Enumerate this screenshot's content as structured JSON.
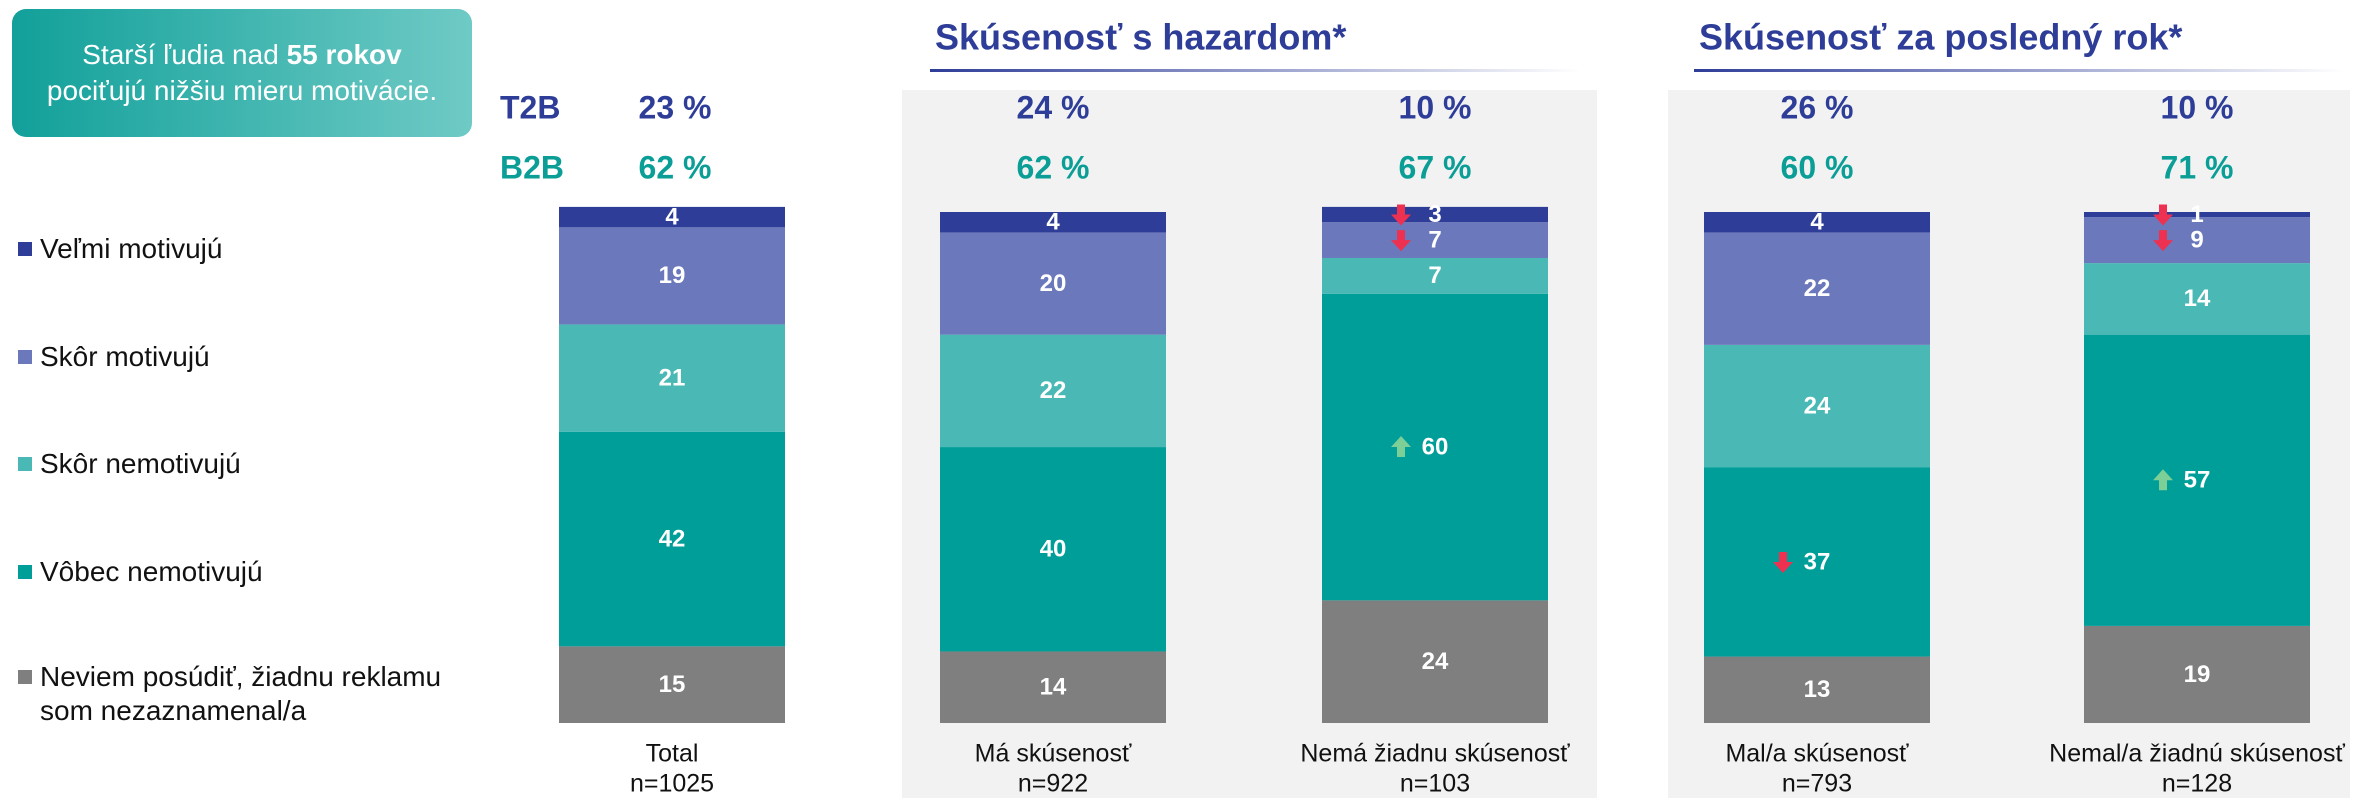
{
  "chart_data": {
    "type": "stacked-bar",
    "callout": {
      "text_before": "Starší ľudia nad",
      "text_bold": "55 rokov",
      "text_after": "pociťujú nižšiu mieru motivácie."
    },
    "group_titles": [
      {
        "title": "Skúsenosť s hazardom*",
        "categories": [
          1,
          2
        ]
      },
      {
        "title": "Skúsenosť za posledný rok*",
        "categories": [
          3,
          4
        ]
      }
    ],
    "categories": [
      "Total",
      "Má skúsenosť",
      "Nemá žiadnu skúsenosť",
      "Mal/a skúsenosť",
      "Nemal/a žiadnú skúsenosť"
    ],
    "sample_sizes": [
      "n=1025",
      "n=922",
      "n=103",
      "n=793",
      "n=128"
    ],
    "summary_rows": [
      {
        "name": "T2B",
        "color": "#2e3d98",
        "values": [
          23,
          24,
          10,
          26,
          10
        ],
        "value_labels": [
          "23 %",
          "24 %",
          "10 %",
          "26 %",
          "10 %"
        ]
      },
      {
        "name": "B2B",
        "color": "#0a9e96",
        "values": [
          62,
          62,
          67,
          60,
          71
        ],
        "value_labels": [
          "62 %",
          "62 %",
          "67 %",
          "60 %",
          "71 %"
        ]
      }
    ],
    "series": [
      {
        "name": "Veľmi motivujú",
        "color": "#2e3d98",
        "values": [
          4,
          4,
          3,
          4,
          1
        ]
      },
      {
        "name": "Skôr motivujú",
        "color": "#6b78bb",
        "values": [
          19,
          20,
          7,
          22,
          9
        ]
      },
      {
        "name": "Skôr nemotivujú",
        "color": "#4ab8b5",
        "values": [
          21,
          22,
          7,
          24,
          14
        ]
      },
      {
        "name": "Vôbec nemotivujú",
        "color": "#009e98",
        "values": [
          42,
          40,
          60,
          37,
          57
        ]
      },
      {
        "name": "Neviem posúdiť, žiadnu reklamu som nezaznamenal/a",
        "color": "#7f7f7f",
        "values": [
          15,
          14,
          24,
          13,
          19
        ]
      }
    ],
    "arrows": [
      {
        "series": 0,
        "category": 2,
        "direction": "down",
        "color": "#ee3150"
      },
      {
        "series": 1,
        "category": 2,
        "direction": "down",
        "color": "#ee3150"
      },
      {
        "series": 3,
        "category": 2,
        "direction": "up",
        "color": "#7ccf96"
      },
      {
        "series": 3,
        "category": 3,
        "direction": "down",
        "color": "#ee3150"
      },
      {
        "series": 0,
        "category": 4,
        "direction": "down",
        "color": "#ee3150"
      },
      {
        "series": 1,
        "category": 4,
        "direction": "down",
        "color": "#ee3150"
      },
      {
        "series": 3,
        "category": 4,
        "direction": "up",
        "color": "#7ccf96"
      }
    ]
  }
}
